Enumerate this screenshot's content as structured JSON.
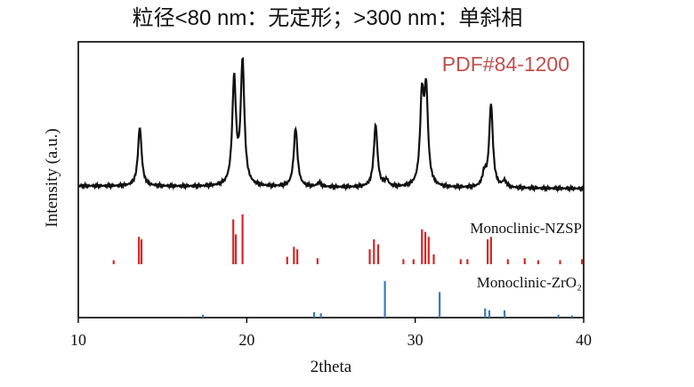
{
  "chart_data": {
    "type": "line",
    "title": "粒径<80 nm：无定形；>300 nm：单斜相",
    "annotation": "PDF#84-1200",
    "xlabel": "2theta",
    "ylabel": "Intensity (a.u.)",
    "xlim": [
      10,
      40
    ],
    "xticks": [
      "10",
      "20",
      "30",
      "40"
    ],
    "grid": false,
    "colors": {
      "pattern": "#111111",
      "nzsp": "#d62728",
      "zro2": "#3a7ab8",
      "annotation": "#c0504d"
    },
    "series": [
      {
        "label": "",
        "kind": "xrd-pattern",
        "baseline": 0.05,
        "peaks": [
          {
            "x": 13.65,
            "height": 0.55
          },
          {
            "x": 19.25,
            "height": 0.99
          },
          {
            "x": 19.75,
            "height": 1.15
          },
          {
            "x": 22.9,
            "height": 0.55
          },
          {
            "x": 24.3,
            "height": 0.04
          },
          {
            "x": 27.65,
            "height": 0.58
          },
          {
            "x": 28.3,
            "height": 0.06
          },
          {
            "x": 30.4,
            "height": 0.8
          },
          {
            "x": 30.65,
            "height": 0.85
          },
          {
            "x": 34.1,
            "height": 0.12
          },
          {
            "x": 34.5,
            "height": 0.78
          },
          {
            "x": 35.3,
            "height": 0.06
          }
        ]
      },
      {
        "label": "Monoclinic-NZSP",
        "kind": "reference-sticks",
        "sticks": [
          {
            "x": 12.1,
            "h": 0.08
          },
          {
            "x": 13.6,
            "h": 0.55
          },
          {
            "x": 13.75,
            "h": 0.5
          },
          {
            "x": 19.2,
            "h": 0.9
          },
          {
            "x": 19.35,
            "h": 0.6
          },
          {
            "x": 19.75,
            "h": 1.0
          },
          {
            "x": 22.4,
            "h": 0.15
          },
          {
            "x": 22.8,
            "h": 0.35
          },
          {
            "x": 23.0,
            "h": 0.3
          },
          {
            "x": 24.2,
            "h": 0.12
          },
          {
            "x": 27.3,
            "h": 0.3
          },
          {
            "x": 27.55,
            "h": 0.5
          },
          {
            "x": 27.8,
            "h": 0.4
          },
          {
            "x": 29.3,
            "h": 0.1
          },
          {
            "x": 29.9,
            "h": 0.1
          },
          {
            "x": 30.4,
            "h": 0.7
          },
          {
            "x": 30.6,
            "h": 0.65
          },
          {
            "x": 30.8,
            "h": 0.55
          },
          {
            "x": 31.1,
            "h": 0.2
          },
          {
            "x": 32.7,
            "h": 0.1
          },
          {
            "x": 33.1,
            "h": 0.1
          },
          {
            "x": 34.3,
            "h": 0.5
          },
          {
            "x": 34.5,
            "h": 0.55
          },
          {
            "x": 35.5,
            "h": 0.1
          },
          {
            "x": 36.5,
            "h": 0.12
          },
          {
            "x": 37.3,
            "h": 0.08
          },
          {
            "x": 38.6,
            "h": 0.08
          },
          {
            "x": 39.9,
            "h": 0.1
          }
        ]
      },
      {
        "label": "Monoclinic-ZrO₂",
        "kind": "reference-sticks",
        "sticks": [
          {
            "x": 17.4,
            "h": 0.08
          },
          {
            "x": 24.0,
            "h": 0.15
          },
          {
            "x": 24.4,
            "h": 0.12
          },
          {
            "x": 28.2,
            "h": 1.0
          },
          {
            "x": 31.45,
            "h": 0.7
          },
          {
            "x": 34.15,
            "h": 0.25
          },
          {
            "x": 34.4,
            "h": 0.2
          },
          {
            "x": 35.3,
            "h": 0.2
          },
          {
            "x": 38.5,
            "h": 0.08
          },
          {
            "x": 39.3,
            "h": 0.06
          }
        ]
      }
    ]
  }
}
